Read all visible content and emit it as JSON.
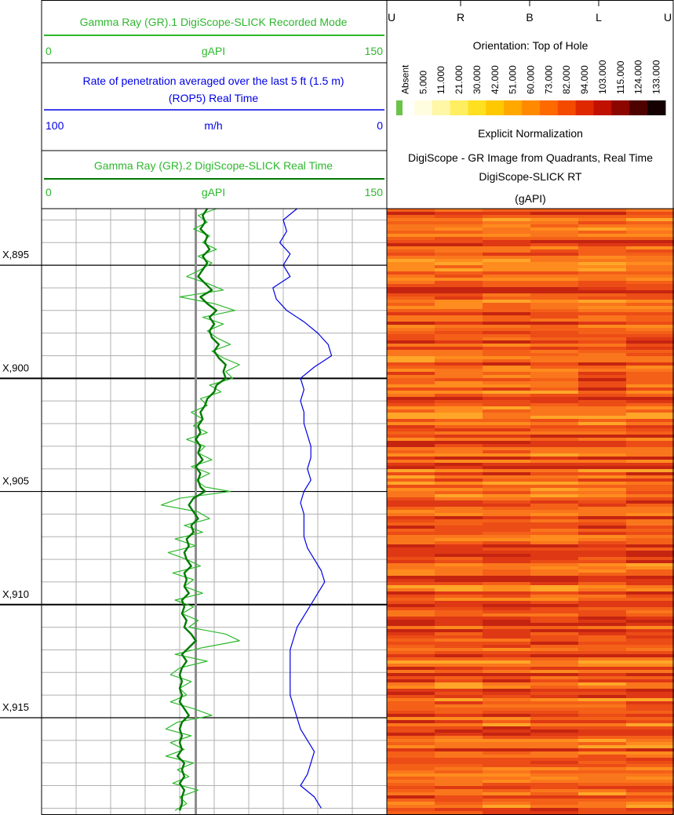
{
  "colors": {
    "gr_recorded": "#2db82d",
    "gr_realtime": "#007a00",
    "rop": "#0000e6",
    "grid": "#b0b0b0",
    "border": "#000000",
    "cursor": "#8c8c8c"
  },
  "header": {
    "gr1": {
      "title": "Gamma Ray (GR).1 DigiScope-SLICK Recorded Mode",
      "left": "0",
      "unit": "gAPI",
      "right": "150"
    },
    "rop": {
      "title_line1": "Rate of penetration averaged over the last 5 ft (1.5 m)",
      "title_line2": "(ROP5) Real Time",
      "left": "100",
      "unit": "m/h",
      "right": "0"
    },
    "gr2": {
      "title": "Gamma Ray (GR).2 DigiScope-SLICK Real Time",
      "left": "0",
      "unit": "gAPI",
      "right": "150"
    },
    "image": {
      "orientation_labels": [
        "U",
        "R",
        "B",
        "L",
        "U"
      ],
      "orientation_title": "Orientation: Top of Hole",
      "scale_labels": [
        "Absent",
        "5.000",
        "11.000",
        "21.000",
        "30.000",
        "42.000",
        "51.000",
        "60.000",
        "73.000",
        "82.000",
        "94.000",
        "103.000",
        "115.000",
        "124.000",
        "133.000"
      ],
      "scale_colors": [
        "#6cc24a",
        "#fffde0",
        "#fff6a6",
        "#ffee60",
        "#ffe020",
        "#ffc800",
        "#ffa800",
        "#ff8a00",
        "#ff6a00",
        "#f44a00",
        "#e02800",
        "#c01000",
        "#8c0600",
        "#4e0200",
        "#140000"
      ],
      "normalization": "Explicit Normalization",
      "title_line1": "DigiScope - GR Image from Quadrants, Real Time",
      "title_line2": "DigiScope-SLICK RT",
      "title_line3": "(gAPI)"
    }
  },
  "chart_data": {
    "type": "line",
    "depth_range": [
      4892.5,
      4919.3
    ],
    "depth_labels": [
      "X,895",
      "X,900",
      "X,905",
      "X,910",
      "X,915"
    ],
    "depth_label_values": [
      4895,
      4900,
      4905,
      4910,
      4915
    ],
    "gr_axis": [
      0,
      150
    ],
    "rop_axis": [
      100,
      0
    ],
    "series": [
      {
        "name": "Gamma Ray (GR).1 DigiScope-SLICK Recorded Mode",
        "unit": "gAPI",
        "depth": [
          4892.5,
          4892.8,
          4893.1,
          4893.4,
          4893.7,
          4894.0,
          4894.3,
          4894.6,
          4894.9,
          4895.2,
          4895.5,
          4895.8,
          4896.1,
          4896.4,
          4896.7,
          4897.0,
          4897.3,
          4897.6,
          4897.9,
          4898.2,
          4898.5,
          4898.8,
          4899.1,
          4899.4,
          4899.7,
          4900.0,
          4900.3,
          4900.6,
          4900.9,
          4901.2,
          4901.5,
          4901.8,
          4902.1,
          4902.4,
          4902.7,
          4903.0,
          4903.3,
          4903.6,
          4903.9,
          4904.2,
          4904.5,
          4904.8,
          4905.0,
          4905.3,
          4905.6,
          4905.9,
          4906.2,
          4906.5,
          4906.8,
          4907.1,
          4907.4,
          4907.7,
          4908.0,
          4908.3,
          4908.6,
          4908.9,
          4909.2,
          4909.5,
          4909.8,
          4910.1,
          4910.4,
          4910.7,
          4911.0,
          4911.3,
          4911.6,
          4911.9,
          4912.2,
          4912.5,
          4912.8,
          4913.1,
          4913.4,
          4913.7,
          4914.0,
          4914.3,
          4914.6,
          4914.9,
          4915.2,
          4915.5,
          4915.8,
          4916.1,
          4916.4,
          4916.7,
          4917.0,
          4917.3,
          4917.6,
          4917.9,
          4918.2,
          4918.5,
          4918.8,
          4919.1
        ],
        "values": [
          76,
          68,
          72,
          66,
          73,
          70,
          76,
          68,
          74,
          69,
          63,
          72,
          79,
          60,
          75,
          84,
          70,
          79,
          72,
          76,
          82,
          74,
          79,
          86,
          80,
          83,
          73,
          78,
          69,
          72,
          65,
          70,
          66,
          72,
          63,
          71,
          68,
          74,
          65,
          73,
          67,
          71,
          82,
          60,
          52,
          68,
          73,
          62,
          70,
          58,
          67,
          55,
          63,
          69,
          57,
          66,
          62,
          70,
          58,
          66,
          61,
          68,
          64,
          80,
          86,
          70,
          58,
          72,
          60,
          56,
          65,
          60,
          63,
          56,
          66,
          74,
          59,
          54,
          65,
          56,
          62,
          54,
          66,
          59,
          64,
          57,
          68,
          60,
          63,
          58
        ]
      },
      {
        "name": "Gamma Ray (GR).2 DigiScope-SLICK Real Time",
        "unit": "gAPI",
        "depth": [
          4892.5,
          4892.8,
          4893.1,
          4893.4,
          4893.7,
          4894.0,
          4894.3,
          4894.6,
          4894.9,
          4895.2,
          4895.5,
          4895.8,
          4896.1,
          4896.4,
          4896.7,
          4897.0,
          4897.3,
          4897.6,
          4897.9,
          4898.2,
          4898.5,
          4898.8,
          4899.1,
          4899.4,
          4899.7,
          4900.0,
          4900.3,
          4900.6,
          4900.9,
          4901.2,
          4901.5,
          4901.8,
          4902.1,
          4902.4,
          4902.7,
          4903.0,
          4903.3,
          4903.6,
          4903.9,
          4904.2,
          4904.5,
          4904.8,
          4905.0,
          4905.3,
          4905.6,
          4905.9,
          4906.2,
          4906.5,
          4906.8,
          4907.1,
          4907.4,
          4907.7,
          4908.0,
          4908.3,
          4908.6,
          4908.9,
          4909.2,
          4909.5,
          4909.8,
          4910.1,
          4910.4,
          4910.7,
          4911.0,
          4911.3,
          4911.6,
          4911.9,
          4912.2,
          4912.5,
          4912.8,
          4913.1,
          4913.4,
          4913.7,
          4914.0,
          4914.3,
          4914.6,
          4914.9,
          4915.2,
          4915.5,
          4915.8,
          4916.1,
          4916.4,
          4916.7,
          4917.0,
          4917.3,
          4917.6,
          4917.9,
          4918.2,
          4918.5,
          4918.8,
          4919.1
        ],
        "values": [
          72,
          70,
          71,
          69,
          72,
          71,
          73,
          70,
          72,
          70,
          68,
          71,
          74,
          69,
          72,
          76,
          73,
          75,
          73,
          74,
          77,
          75,
          77,
          80,
          79,
          80,
          76,
          75,
          72,
          71,
          69,
          70,
          68,
          69,
          67,
          69,
          68,
          70,
          67,
          69,
          68,
          69,
          71,
          66,
          64,
          66,
          68,
          65,
          66,
          63,
          64,
          62,
          63,
          65,
          62,
          63,
          62,
          64,
          61,
          62,
          61,
          63,
          62,
          65,
          67,
          64,
          61,
          63,
          61,
          60,
          61,
          60,
          61,
          60,
          62,
          64,
          61,
          60,
          61,
          60,
          61,
          59,
          62,
          61,
          62,
          60,
          62,
          61,
          61,
          60
        ]
      },
      {
        "name": "Rate of penetration averaged over the last 5 ft (1.5 m) (ROP5) Real Time",
        "unit": "m/h",
        "depth": [
          4892.5,
          4893.0,
          4893.5,
          4894.0,
          4894.5,
          4895.0,
          4895.5,
          4896.0,
          4896.5,
          4897.0,
          4897.5,
          4898.0,
          4898.5,
          4899.0,
          4899.5,
          4900.0,
          4900.5,
          4901.0,
          4901.5,
          4902.0,
          4902.5,
          4903.0,
          4903.5,
          4904.0,
          4904.5,
          4905.0,
          4905.5,
          4906.0,
          4906.5,
          4907.0,
          4907.5,
          4908.0,
          4908.5,
          4909.0,
          4909.5,
          4910.0,
          4910.5,
          4911.0,
          4911.5,
          4912.0,
          4912.5,
          4913.0,
          4913.5,
          4914.0,
          4914.5,
          4915.0,
          4915.5,
          4916.0,
          4916.5,
          4917.0,
          4917.5,
          4918.0,
          4918.5,
          4919.0
        ],
        "values": [
          26,
          30,
          29,
          31,
          28,
          30,
          28,
          33,
          32,
          29,
          24,
          20,
          17,
          16,
          21,
          25,
          24,
          25,
          24,
          24,
          23,
          22,
          22,
          23,
          22,
          24,
          25,
          24,
          24,
          24,
          23,
          21,
          19,
          18,
          20,
          22,
          24,
          26,
          27,
          28,
          28,
          28,
          28,
          28,
          27,
          26,
          25,
          23,
          21,
          22,
          23,
          25,
          21,
          19
        ]
      }
    ]
  }
}
